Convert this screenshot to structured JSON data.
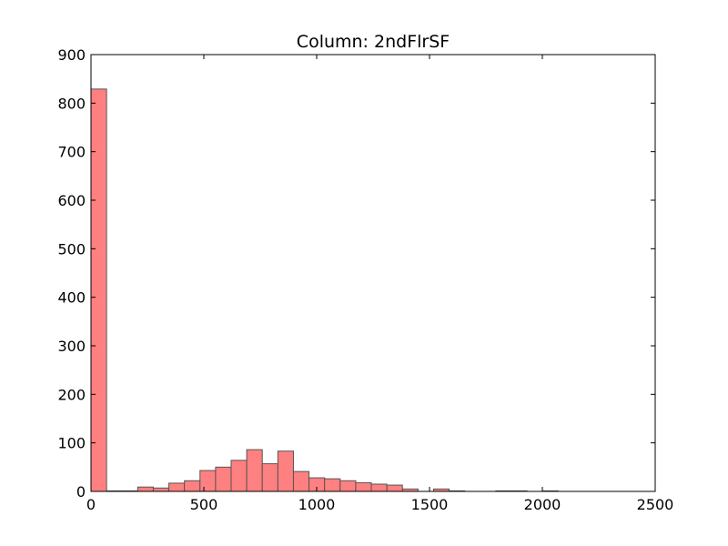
{
  "chart_data": {
    "type": "bar",
    "subtype": "histogram",
    "title": "Column: 2ndFlrSF",
    "xlabel": "",
    "ylabel": "",
    "xlim": [
      0,
      2500
    ],
    "ylim": [
      0,
      900
    ],
    "xticks": [
      0,
      500,
      1000,
      1500,
      2000,
      2500
    ],
    "yticks": [
      0,
      100,
      200,
      300,
      400,
      500,
      600,
      700,
      800,
      900
    ],
    "bar_color": "#ff8080",
    "edge_color": "#555555",
    "bins": [
      {
        "x0": 0,
        "x1": 69,
        "count": 829
      },
      {
        "x0": 69,
        "x1": 138,
        "count": 1
      },
      {
        "x0": 138,
        "x1": 207,
        "count": 1
      },
      {
        "x0": 207,
        "x1": 276,
        "count": 9
      },
      {
        "x0": 276,
        "x1": 345,
        "count": 7
      },
      {
        "x0": 345,
        "x1": 414,
        "count": 17
      },
      {
        "x0": 414,
        "x1": 483,
        "count": 22
      },
      {
        "x0": 483,
        "x1": 552,
        "count": 43
      },
      {
        "x0": 552,
        "x1": 621,
        "count": 50
      },
      {
        "x0": 621,
        "x1": 690,
        "count": 64
      },
      {
        "x0": 690,
        "x1": 759,
        "count": 86
      },
      {
        "x0": 759,
        "x1": 828,
        "count": 57
      },
      {
        "x0": 828,
        "x1": 897,
        "count": 83
      },
      {
        "x0": 897,
        "x1": 966,
        "count": 41
      },
      {
        "x0": 966,
        "x1": 1035,
        "count": 28
      },
      {
        "x0": 1035,
        "x1": 1104,
        "count": 26
      },
      {
        "x0": 1104,
        "x1": 1173,
        "count": 22
      },
      {
        "x0": 1173,
        "x1": 1242,
        "count": 18
      },
      {
        "x0": 1242,
        "x1": 1311,
        "count": 15
      },
      {
        "x0": 1311,
        "x1": 1380,
        "count": 13
      },
      {
        "x0": 1380,
        "x1": 1449,
        "count": 5
      },
      {
        "x0": 1449,
        "x1": 1518,
        "count": 0
      },
      {
        "x0": 1518,
        "x1": 1587,
        "count": 5
      },
      {
        "x0": 1587,
        "x1": 1656,
        "count": 1
      },
      {
        "x0": 1656,
        "x1": 1725,
        "count": 0
      },
      {
        "x0": 1725,
        "x1": 1794,
        "count": 0
      },
      {
        "x0": 1794,
        "x1": 1863,
        "count": 1
      },
      {
        "x0": 1863,
        "x1": 1932,
        "count": 1
      },
      {
        "x0": 1932,
        "x1": 2001,
        "count": 0
      },
      {
        "x0": 2001,
        "x1": 2070,
        "count": 1
      }
    ]
  }
}
